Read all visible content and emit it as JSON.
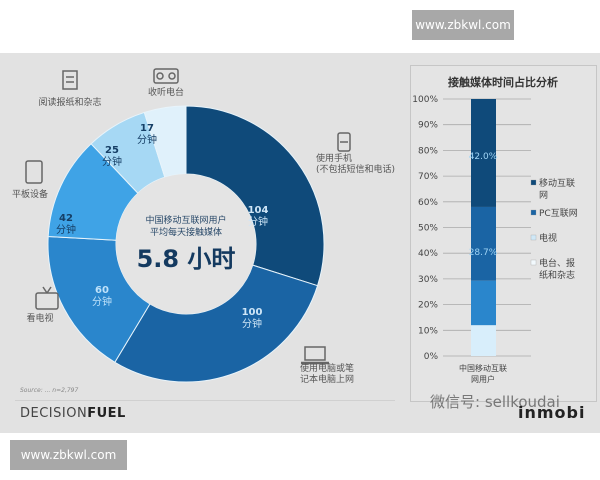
{
  "watermarks": {
    "top": "www.zbkwl.com",
    "bottom": "www.zbkwl.com"
  },
  "donut": {
    "center_line1": "中国移动互联网用户",
    "center_line2": "平均每天接触媒体",
    "center_value": "5.8 小时",
    "unit": "分钟",
    "segments": [
      {
        "label": "使用手机 (不包括短信和电话)",
        "label_line1": "使用手机",
        "label_line2": "(不包括短信和电话)",
        "value": 104,
        "color": "#0f4a7a",
        "icon": "mobile-phone-icon"
      },
      {
        "label": "使用电脑或笔记本电脑上网",
        "label_line1": "使用电脑或笔",
        "label_line2": "记本电脑上网",
        "value": 100,
        "color": "#1a64a4",
        "icon": "laptop-icon"
      },
      {
        "label": "看电视",
        "label_line1": "看电视",
        "label_line2": "",
        "value": 60,
        "color": "#2a86cc",
        "icon": "tv-icon"
      },
      {
        "label": "平板设备",
        "label_line1": "平板设备",
        "label_line2": "",
        "value": 42,
        "color": "#3fa3e6",
        "icon": "tablet-icon"
      },
      {
        "label": "阅读报纸和杂志",
        "label_line1": "阅读报纸和杂志",
        "label_line2": "",
        "value": 25,
        "color": "#a6d8f4",
        "icon": "newspaper-icon"
      },
      {
        "label": "收听电台",
        "label_line1": "收听电台",
        "label_line2": "",
        "value": 17,
        "color": "#e0f1fb",
        "icon": "radio-icon"
      }
    ],
    "source": "Source: ... n=2,797"
  },
  "bar_panel": {
    "title": "接触媒体时间占比分析",
    "y_ticks": [
      "0%",
      "10%",
      "20%",
      "30%",
      "40%",
      "50%",
      "60%",
      "70%",
      "80%",
      "90%",
      "100%"
    ],
    "category": "中国移动互联网用户",
    "category_line1": "中国移动互联",
    "category_line2": "网用户",
    "labels": {
      "mobile": "42.0%",
      "pc": "28.7%"
    },
    "legend": [
      {
        "label_line1": "移动互联",
        "label_line2": "网",
        "color": "#0f4a7a"
      },
      {
        "label_line1": "PC互联网",
        "label_line2": "",
        "color": "#1a64a4"
      },
      {
        "label_line1": "电视",
        "label_line2": "",
        "color": "#cfe8f7"
      },
      {
        "label_line1": "电台、报",
        "label_line2": "纸和杂志",
        "color": "#f2f9fd"
      }
    ]
  },
  "footer": {
    "brand_light": "DECISION",
    "brand_bold": "FUEL",
    "wechat": "微信号: sellkoudai",
    "partner": "inmobi"
  },
  "chart_data": [
    {
      "type": "pie",
      "title": "中国移动互联网用户平均每天接触媒体 5.8 小时",
      "categories": [
        "使用手机(不包括短信和电话)",
        "使用电脑或笔记本电脑上网",
        "看电视",
        "平板设备",
        "阅读报纸和杂志",
        "收听电台"
      ],
      "values": [
        104,
        100,
        60,
        42,
        25,
        17
      ],
      "unit": "分钟",
      "total_minutes": 348
    },
    {
      "type": "bar",
      "stacked": true,
      "title": "接触媒体时间占比分析",
      "categories": [
        "中国移动互联网用户"
      ],
      "series": [
        {
          "name": "电台、报纸和杂志",
          "values": [
            12.0
          ]
        },
        {
          "name": "电视",
          "values": [
            17.3
          ]
        },
        {
          "name": "PC互联网",
          "values": [
            28.7
          ]
        },
        {
          "name": "移动互联网",
          "values": [
            42.0
          ]
        }
      ],
      "ylim": [
        0,
        100
      ],
      "ylabel": "%",
      "y_ticks": [
        0,
        10,
        20,
        30,
        40,
        50,
        60,
        70,
        80,
        90,
        100
      ],
      "legend_position": "right",
      "grid": true
    }
  ]
}
